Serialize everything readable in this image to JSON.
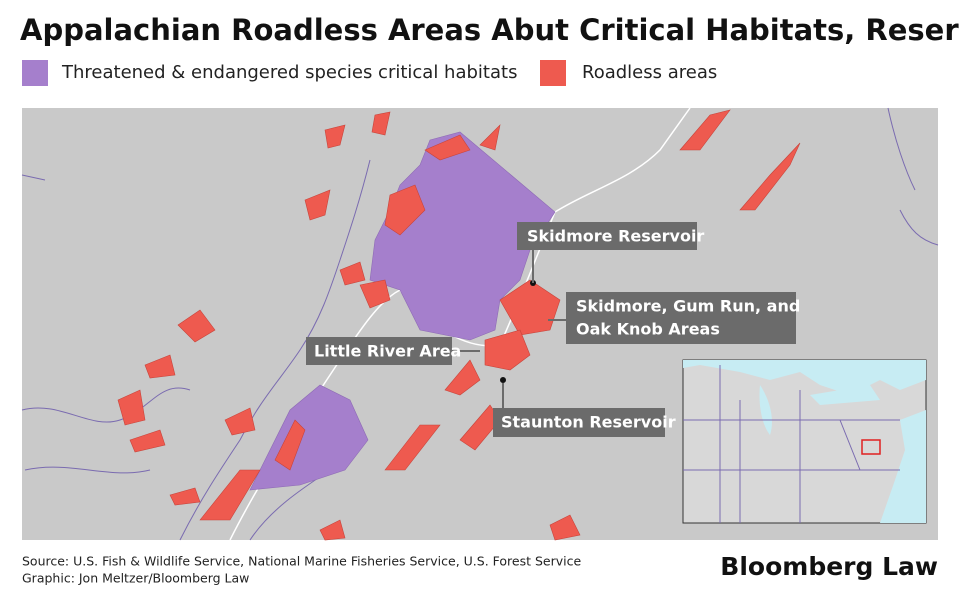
{
  "header": {
    "title": "Appalachian Roadless Areas Abut Critical Habitats, Reservoirs"
  },
  "legend": {
    "items": [
      {
        "label": "Threatened & endangered species critical habitats",
        "color": "#a57fcc"
      },
      {
        "label": "Roadless areas",
        "color": "#ee5a4f"
      }
    ]
  },
  "map": {
    "labels": [
      {
        "lines": [
          "Skidmore Reservoir"
        ]
      },
      {
        "lines": [
          "Skidmore, Gum Run, and",
          "Oak Knob Areas"
        ]
      },
      {
        "lines": [
          "Little River Area"
        ]
      },
      {
        "lines": [
          "Staunton Reservoir"
        ]
      }
    ]
  },
  "footer": {
    "source": "Source: U.S. Fish & Wildlife Service, National Marine Fisheries Service, U.S. Forest Service",
    "credit": "Graphic: Jon Meltzer/Bloomberg Law",
    "logo": "Bloomberg Law"
  }
}
